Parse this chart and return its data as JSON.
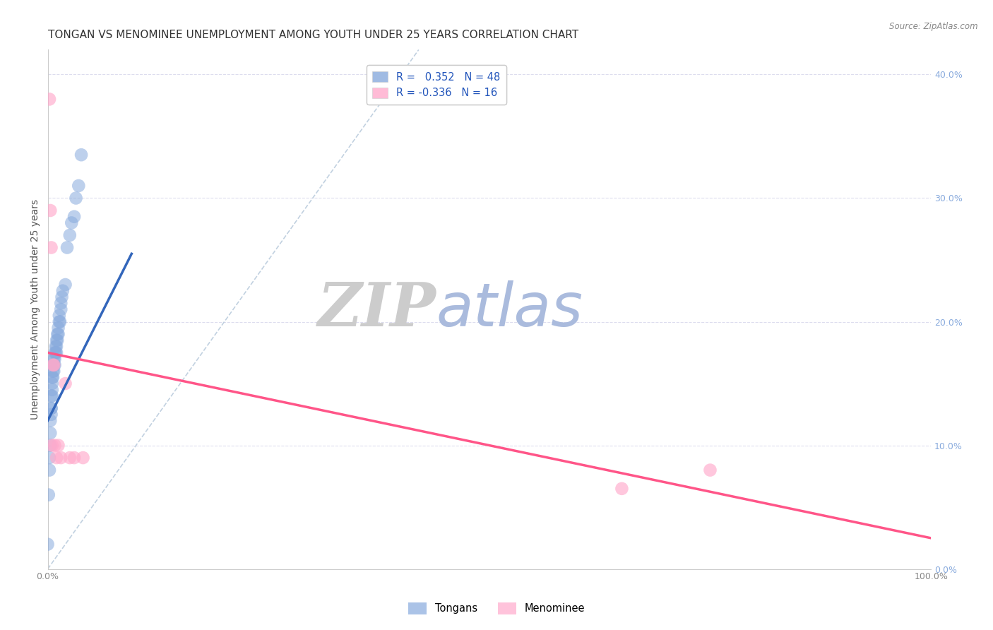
{
  "title": "TONGAN VS MENOMINEE UNEMPLOYMENT AMONG YOUTH UNDER 25 YEARS CORRELATION CHART",
  "source": "Source: ZipAtlas.com",
  "ylabel": "Unemployment Among Youth under 25 years",
  "xlim": [
    0.0,
    1.0
  ],
  "ylim": [
    0.0,
    0.42
  ],
  "yticks": [
    0.0,
    0.1,
    0.2,
    0.3,
    0.4
  ],
  "blue_R": 0.352,
  "blue_N": 48,
  "pink_R": -0.336,
  "pink_N": 16,
  "blue_scatter_x": [
    0.0,
    0.001,
    0.002,
    0.002,
    0.003,
    0.003,
    0.003,
    0.004,
    0.004,
    0.004,
    0.004,
    0.005,
    0.005,
    0.005,
    0.005,
    0.006,
    0.006,
    0.006,
    0.007,
    0.007,
    0.007,
    0.008,
    0.008,
    0.008,
    0.009,
    0.009,
    0.01,
    0.01,
    0.01,
    0.011,
    0.011,
    0.012,
    0.012,
    0.013,
    0.013,
    0.014,
    0.015,
    0.015,
    0.016,
    0.017,
    0.02,
    0.022,
    0.025,
    0.027,
    0.03,
    0.032,
    0.035,
    0.038
  ],
  "blue_scatter_y": [
    0.02,
    0.06,
    0.08,
    0.09,
    0.1,
    0.11,
    0.12,
    0.125,
    0.13,
    0.13,
    0.14,
    0.14,
    0.145,
    0.15,
    0.155,
    0.155,
    0.16,
    0.165,
    0.16,
    0.165,
    0.17,
    0.165,
    0.17,
    0.175,
    0.175,
    0.18,
    0.175,
    0.18,
    0.185,
    0.185,
    0.19,
    0.19,
    0.195,
    0.2,
    0.205,
    0.2,
    0.21,
    0.215,
    0.22,
    0.225,
    0.23,
    0.26,
    0.27,
    0.28,
    0.285,
    0.3,
    0.31,
    0.335
  ],
  "pink_scatter_x": [
    0.002,
    0.003,
    0.004,
    0.005,
    0.006,
    0.007,
    0.008,
    0.01,
    0.012,
    0.015,
    0.02,
    0.025,
    0.03,
    0.04,
    0.65,
    0.75
  ],
  "pink_scatter_y": [
    0.38,
    0.29,
    0.26,
    0.1,
    0.165,
    0.165,
    0.1,
    0.09,
    0.1,
    0.09,
    0.15,
    0.09,
    0.09,
    0.09,
    0.065,
    0.08
  ],
  "blue_line_x": [
    0.0,
    0.095
  ],
  "blue_line_y": [
    0.12,
    0.255
  ],
  "pink_line_x": [
    0.0,
    1.0
  ],
  "pink_line_y": [
    0.175,
    0.025
  ],
  "diag_line_x": [
    0.0,
    0.42
  ],
  "diag_line_y": [
    0.0,
    0.42
  ],
  "blue_color": "#88AADD",
  "pink_color": "#FFAACC",
  "blue_line_color": "#3366BB",
  "pink_line_color": "#FF5588",
  "diag_line_color": "#BBCCDD",
  "watermark_ZIP_color": "#CCCCCC",
  "watermark_atlas_color": "#AABBDD",
  "background_color": "#FFFFFF",
  "grid_color": "#DDDDEE",
  "title_fontsize": 11,
  "label_fontsize": 10,
  "tick_fontsize": 9,
  "right_tick_color": "#88AADD"
}
